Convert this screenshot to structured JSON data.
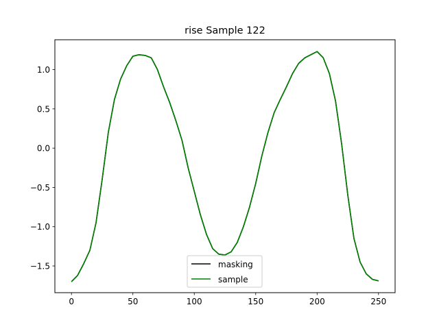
{
  "chart_data": {
    "type": "line",
    "title": "rise Sample 122",
    "xlabel": "",
    "ylabel": "",
    "xlim": [
      -13.5,
      263.5
    ],
    "ylim": [
      -1.84,
      1.38
    ],
    "xticks": [
      0,
      50,
      100,
      150,
      200,
      250
    ],
    "yticks": [
      -1.5,
      -1.0,
      -0.5,
      0.0,
      0.5,
      1.0
    ],
    "xtick_labels": [
      "0",
      "50",
      "100",
      "150",
      "200",
      "250"
    ],
    "ytick_labels": [
      "−1.5",
      "−1.0",
      "−0.5",
      "0.0",
      "0.5",
      "1.0"
    ],
    "grid": false,
    "legend_position": "lower-center",
    "series": [
      {
        "name": "masking",
        "color": "#000000",
        "x": [
          0,
          5,
          10,
          15,
          20,
          25,
          30,
          35,
          40,
          45,
          50,
          55,
          60,
          65,
          70,
          75,
          80,
          85,
          90,
          95,
          100,
          105,
          110,
          115,
          120,
          125,
          130,
          135,
          140,
          145,
          150,
          155,
          160,
          165,
          170,
          175,
          180,
          185,
          190,
          195,
          200,
          205,
          210,
          215,
          220,
          225,
          230,
          235,
          240,
          245,
          250
        ],
        "y": [
          -1.7,
          -1.62,
          -1.47,
          -1.3,
          -0.95,
          -0.4,
          0.2,
          0.62,
          0.88,
          1.05,
          1.17,
          1.19,
          1.18,
          1.15,
          1.0,
          0.78,
          0.58,
          0.35,
          0.1,
          -0.25,
          -0.55,
          -0.85,
          -1.1,
          -1.28,
          -1.35,
          -1.36,
          -1.32,
          -1.2,
          -1.0,
          -0.75,
          -0.45,
          -0.1,
          0.2,
          0.45,
          0.62,
          0.78,
          0.95,
          1.08,
          1.15,
          1.19,
          1.23,
          1.15,
          0.95,
          0.6,
          0.05,
          -0.6,
          -1.15,
          -1.45,
          -1.6,
          -1.67,
          -1.69
        ]
      },
      {
        "name": "sample",
        "color": "#008000",
        "x": [
          0,
          5,
          10,
          15,
          20,
          25,
          30,
          35,
          40,
          45,
          50,
          55,
          60,
          65,
          70,
          75,
          80,
          85,
          90,
          95,
          100,
          105,
          110,
          115,
          120,
          125,
          130,
          135,
          140,
          145,
          150,
          155,
          160,
          165,
          170,
          175,
          180,
          185,
          190,
          195,
          200,
          205,
          210,
          215,
          220,
          225,
          230,
          235,
          240,
          245,
          250
        ],
        "y": [
          -1.7,
          -1.62,
          -1.47,
          -1.3,
          -0.95,
          -0.4,
          0.2,
          0.62,
          0.88,
          1.05,
          1.17,
          1.19,
          1.18,
          1.15,
          1.0,
          0.78,
          0.58,
          0.35,
          0.1,
          -0.25,
          -0.55,
          -0.85,
          -1.1,
          -1.28,
          -1.35,
          -1.36,
          -1.32,
          -1.2,
          -1.0,
          -0.75,
          -0.45,
          -0.1,
          0.2,
          0.45,
          0.62,
          0.78,
          0.95,
          1.08,
          1.15,
          1.19,
          1.23,
          1.15,
          0.95,
          0.6,
          0.05,
          -0.6,
          -1.15,
          -1.45,
          -1.6,
          -1.67,
          -1.69
        ]
      }
    ]
  }
}
